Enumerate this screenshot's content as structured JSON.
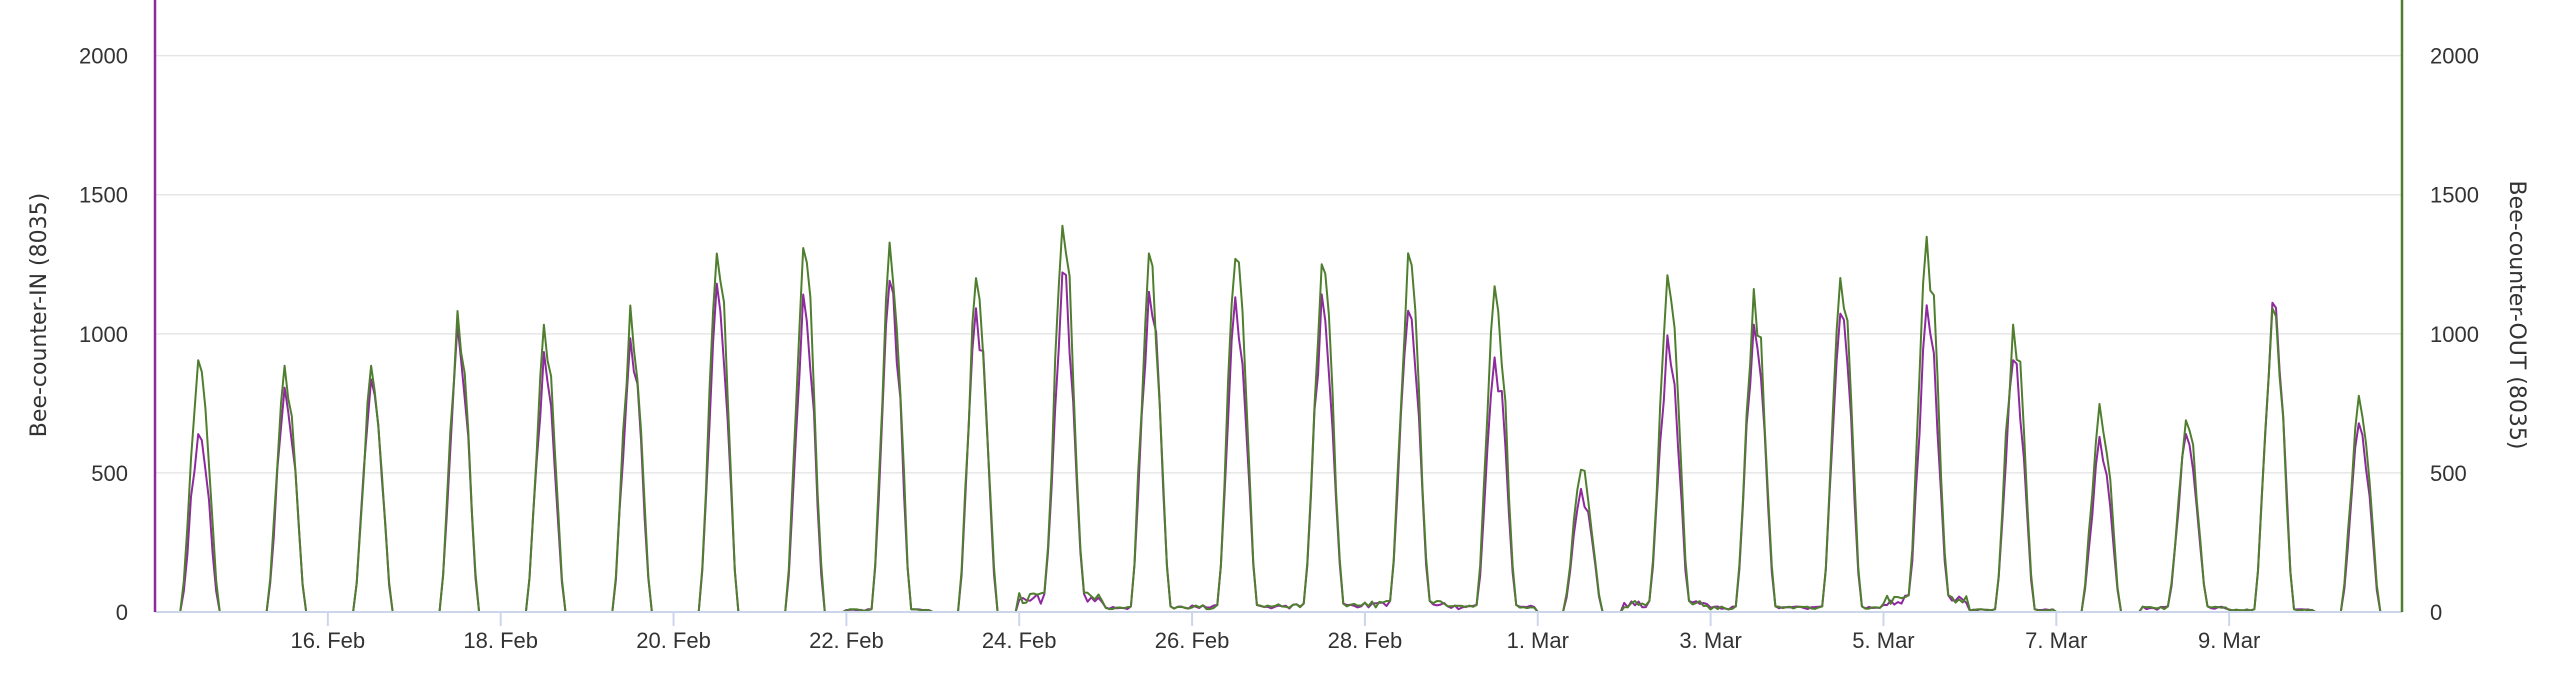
{
  "chart_data": {
    "type": "line",
    "x_start": "2024-02-14",
    "x_end": "2024-03-10",
    "x_ticks": [
      "16. Feb",
      "18. Feb",
      "20. Feb",
      "22. Feb",
      "24. Feb",
      "26. Feb",
      "28. Feb",
      "1. Mar",
      "3. Mar",
      "5. Mar",
      "7. Mar",
      "9. Mar"
    ],
    "y_left": {
      "label": "Bee-counter-IN (8035)",
      "ticks": [
        "0",
        "500",
        "1000",
        "1500",
        "2000"
      ],
      "ylim": [
        0,
        2200
      ]
    },
    "y_right": {
      "label": "Bee-counter-OUT (8035)",
      "ticks": [
        "0",
        "500",
        "1000",
        "1500",
        "2000"
      ],
      "ylim": [
        0,
        2200
      ]
    },
    "grid": true,
    "colors": {
      "in": "#8e2a9e",
      "out": "#4f7f2e",
      "grid": "#e6e6e6",
      "axis": "#ccd6eb"
    },
    "series": [
      {
        "name": "Bee-counter-IN (8035)",
        "color": "#8e2a9e",
        "axis": "left",
        "peaks": [
          {
            "date": "2024-02-14",
            "max": 650,
            "min": 0
          },
          {
            "date": "2024-02-15",
            "max": 820,
            "min": 0
          },
          {
            "date": "2024-02-16",
            "max": 850,
            "min": 0
          },
          {
            "date": "2024-02-17",
            "max": 1050,
            "min": 0
          },
          {
            "date": "2024-02-18",
            "max": 950,
            "min": 0
          },
          {
            "date": "2024-02-19",
            "max": 1000,
            "min": 0
          },
          {
            "date": "2024-02-20",
            "max": 1200,
            "min": 0
          },
          {
            "date": "2024-02-21",
            "max": 1160,
            "min": 0
          },
          {
            "date": "2024-02-22",
            "max": 1210,
            "min": 10
          },
          {
            "date": "2024-02-23",
            "max": 1110,
            "min": 0
          },
          {
            "date": "2024-02-24",
            "max": 1240,
            "min": 65
          },
          {
            "date": "2024-02-25",
            "max": 1170,
            "min": 20
          },
          {
            "date": "2024-02-26",
            "max": 1150,
            "min": 25
          },
          {
            "date": "2024-02-27",
            "max": 1160,
            "min": 30
          },
          {
            "date": "2024-02-28",
            "max": 1100,
            "min": 40
          },
          {
            "date": "2024-02-29",
            "max": 930,
            "min": 25
          },
          {
            "date": "2024-03-01",
            "max": 450,
            "min": 0
          },
          {
            "date": "2024-03-02",
            "max": 1010,
            "min": 40
          },
          {
            "date": "2024-03-03",
            "max": 1050,
            "min": 20
          },
          {
            "date": "2024-03-04",
            "max": 1090,
            "min": 20
          },
          {
            "date": "2024-03-05",
            "max": 1120,
            "min": 60
          },
          {
            "date": "2024-03-06",
            "max": 920,
            "min": 10
          },
          {
            "date": "2024-03-07",
            "max": 640,
            "min": 0
          },
          {
            "date": "2024-03-08",
            "max": 650,
            "min": 20
          },
          {
            "date": "2024-03-09",
            "max": 1130,
            "min": 10
          },
          {
            "date": "2024-03-10",
            "max": 690,
            "min": 0
          }
        ]
      },
      {
        "name": "Bee-counter-OUT (8035)",
        "color": "#4f7f2e",
        "axis": "right",
        "peaks": [
          {
            "date": "2024-02-14",
            "max": 920,
            "min": 0
          },
          {
            "date": "2024-02-15",
            "max": 900,
            "min": 0
          },
          {
            "date": "2024-02-16",
            "max": 900,
            "min": 0
          },
          {
            "date": "2024-02-17",
            "max": 1100,
            "min": 0
          },
          {
            "date": "2024-02-18",
            "max": 1050,
            "min": 0
          },
          {
            "date": "2024-02-19",
            "max": 1120,
            "min": 0
          },
          {
            "date": "2024-02-20",
            "max": 1310,
            "min": 0
          },
          {
            "date": "2024-02-21",
            "max": 1330,
            "min": 0
          },
          {
            "date": "2024-02-22",
            "max": 1350,
            "min": 10
          },
          {
            "date": "2024-02-23",
            "max": 1220,
            "min": 0
          },
          {
            "date": "2024-02-24",
            "max": 1410,
            "min": 70
          },
          {
            "date": "2024-02-25",
            "max": 1310,
            "min": 20
          },
          {
            "date": "2024-02-26",
            "max": 1290,
            "min": 25
          },
          {
            "date": "2024-02-27",
            "max": 1270,
            "min": 30
          },
          {
            "date": "2024-02-28",
            "max": 1310,
            "min": 40
          },
          {
            "date": "2024-02-29",
            "max": 1190,
            "min": 25
          },
          {
            "date": "2024-03-01",
            "max": 520,
            "min": 0
          },
          {
            "date": "2024-03-02",
            "max": 1230,
            "min": 40
          },
          {
            "date": "2024-03-03",
            "max": 1180,
            "min": 20
          },
          {
            "date": "2024-03-04",
            "max": 1220,
            "min": 20
          },
          {
            "date": "2024-03-05",
            "max": 1370,
            "min": 60
          },
          {
            "date": "2024-03-06",
            "max": 1050,
            "min": 10
          },
          {
            "date": "2024-03-07",
            "max": 760,
            "min": 0
          },
          {
            "date": "2024-03-08",
            "max": 700,
            "min": 20
          },
          {
            "date": "2024-03-09",
            "max": 1110,
            "min": 10
          },
          {
            "date": "2024-03-10",
            "max": 790,
            "min": 0
          }
        ]
      }
    ]
  }
}
